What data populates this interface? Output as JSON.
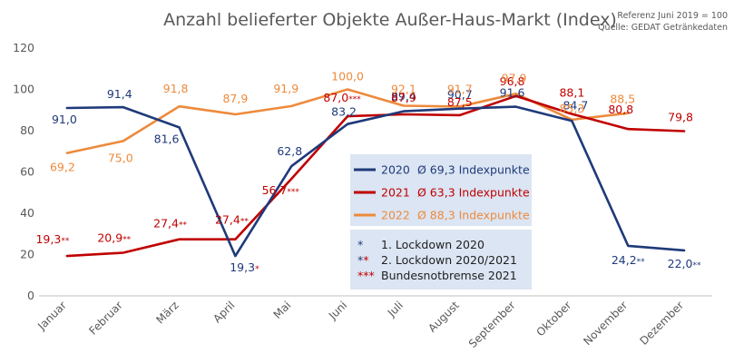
{
  "chart_data": {
    "type": "line",
    "title": "Anzahl belieferter Objekte Außer-Haus-Markt (Index)",
    "reference_lines": [
      "Referenz Juni 2019 = 100",
      "Quelle: GEDAT Getränkedaten"
    ],
    "categories": [
      "Januar",
      "Februar",
      "März",
      "April",
      "Mai",
      "Juni",
      "Juli",
      "August",
      "September",
      "Oktober",
      "November",
      "Dezember"
    ],
    "ylim": [
      0,
      120
    ],
    "yticks": [
      0,
      20,
      40,
      60,
      80,
      100,
      120
    ],
    "grid": false,
    "series": [
      {
        "name": "2020",
        "color": "#1f3a7a",
        "values": [
          91.0,
          91.4,
          81.6,
          19.3,
          62.8,
          83.2,
          89.4,
          90.7,
          91.6,
          84.7,
          24.2,
          22.0
        ],
        "labels": [
          "91,0",
          "91,4",
          "81,6",
          "19,3",
          "62,8",
          "83,2",
          "89,4",
          "90,7",
          "91,6",
          "84,7",
          "24,2",
          "22,0"
        ],
        "marks": [
          "",
          "",
          "",
          "*",
          "",
          "",
          "",
          "",
          "",
          "",
          "**",
          "**"
        ]
      },
      {
        "name": "2021",
        "color": "#c00000",
        "values": [
          19.3,
          20.9,
          27.4,
          27.4,
          56.7,
          87.0,
          87.9,
          87.5,
          96.8,
          88.1,
          80.8,
          79.8
        ],
        "labels": [
          "19,3",
          "20,9",
          "27,4",
          "27,4",
          "56,7",
          "87,0",
          "87,9",
          "87,5",
          "96,8",
          "88,1",
          "80,8",
          "79,8"
        ],
        "marks": [
          "**",
          "**",
          "**",
          "**",
          "***",
          "***",
          "",
          "",
          "",
          "",
          "",
          ""
        ]
      },
      {
        "name": "2022",
        "color": "#ed8a3c",
        "values": [
          69.2,
          75.0,
          91.8,
          87.9,
          91.9,
          100.0,
          92.1,
          91.7,
          97.9,
          85.3,
          88.5,
          null
        ],
        "labels": [
          "69,2",
          "75,0",
          "91,8",
          "87,9",
          "91,9",
          "100,0",
          "92,1",
          "91,7",
          "97,9",
          "85,3",
          "88,5",
          ""
        ],
        "marks": [
          "",
          "",
          "",
          "",
          "",
          "",
          "",
          "",
          "",
          "",
          "",
          ""
        ]
      }
    ],
    "legend": {
      "placement": "center",
      "entries": [
        {
          "year": "2020",
          "text": "Ø 69,3 Indexpunkte",
          "color": "#1f3a7a"
        },
        {
          "year": "2021",
          "text": "Ø 63,3 Indexpunkte",
          "color": "#c00000"
        },
        {
          "year": "2022",
          "text": "Ø 88,3 Indexpunkte",
          "color": "#ed8a3c"
        }
      ]
    },
    "notes": [
      {
        "symbol": "*",
        "text": "1. Lockdown 2020",
        "colors": [
          "#1f3a7a"
        ]
      },
      {
        "symbol": "**",
        "text": "2. Lockdown 2020/2021",
        "colors": [
          "#1f3a7a",
          "#c00000"
        ]
      },
      {
        "symbol": "***",
        "text": "Bundesnotbremse 2021",
        "colors": [
          "#c00000",
          "#c00000",
          "#c00000"
        ]
      }
    ]
  }
}
